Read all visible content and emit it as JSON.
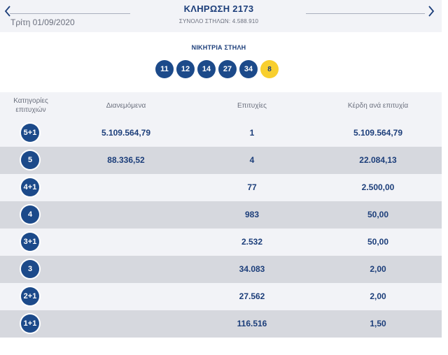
{
  "header": {
    "draw_title": "ΚΛΗΡΩΣΗ 2173",
    "draw_subtitle": "ΣΥΝΟΛΟ ΣΤΗΛΩΝ: 4.588.910",
    "draw_date": "Τρίτη 01/09/2020",
    "prev_icon": "chevron-left-icon",
    "next_icon": "chevron-right-icon"
  },
  "winning": {
    "title": "ΝΙΚΗΤΡΙΑ ΣΤΗΛΗ",
    "numbers": [
      "11",
      "12",
      "14",
      "27",
      "34"
    ],
    "joker": "8",
    "colors": {
      "number_ball": "#1c4a8a",
      "joker_ball": "#f8cf2e"
    }
  },
  "table": {
    "headers": {
      "category": "Κατηγορίες επιτυχιών",
      "distributed": "Διανεμόμενα",
      "winners": "Επιτυχίες",
      "prize": "Κέρδη ανά επιτυχία"
    },
    "rows": [
      {
        "category": "5+1",
        "distributed": "5.109.564,79",
        "winners": "1",
        "prize": "5.109.564,79"
      },
      {
        "category": "5",
        "distributed": "88.336,52",
        "winners": "4",
        "prize": "22.084,13"
      },
      {
        "category": "4+1",
        "distributed": "",
        "winners": "77",
        "prize": "2.500,00"
      },
      {
        "category": "4",
        "distributed": "",
        "winners": "983",
        "prize": "50,00"
      },
      {
        "category": "3+1",
        "distributed": "",
        "winners": "2.532",
        "prize": "50,00"
      },
      {
        "category": "3",
        "distributed": "",
        "winners": "34.083",
        "prize": "2,00"
      },
      {
        "category": "2+1",
        "distributed": "",
        "winners": "27.562",
        "prize": "2,00"
      },
      {
        "category": "1+1",
        "distributed": "",
        "winners": "116.516",
        "prize": "1,50"
      }
    ]
  },
  "colors": {
    "accent": "#1c3e7a",
    "header_bg": "#f2f3f7",
    "row_alt_bg": "#d6d8de"
  }
}
